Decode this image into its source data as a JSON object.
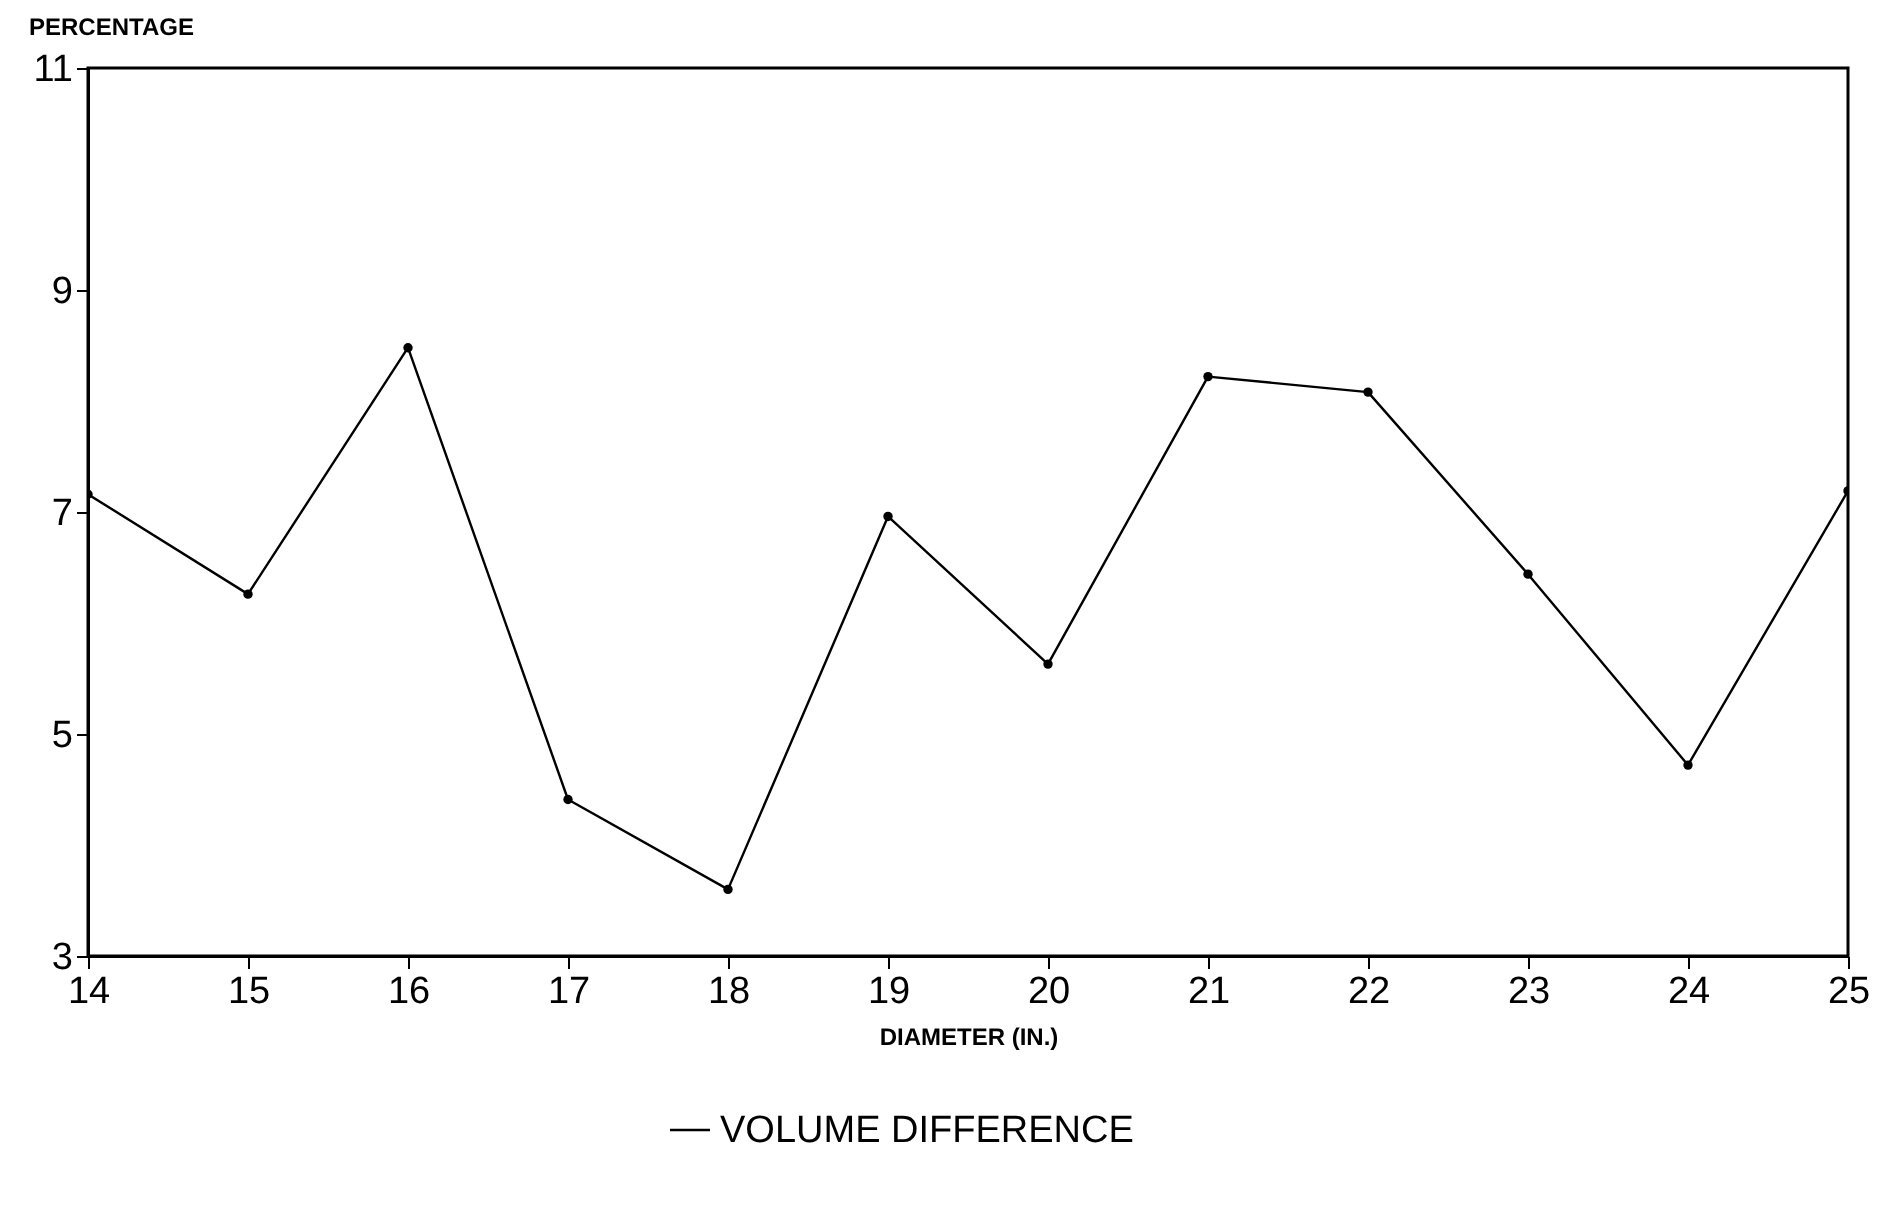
{
  "chart_data": {
    "type": "line",
    "xlabel": "DIAMETER (IN.)",
    "ylabel": "PERCENTAGE",
    "x": [
      14,
      15,
      16,
      17,
      18,
      19,
      20,
      21,
      22,
      23,
      24,
      25
    ],
    "series": [
      {
        "name": "VOLUME DIFFERENCE",
        "color": "#000000",
        "values": [
          7.16,
          6.26,
          8.48,
          4.41,
          3.6,
          6.96,
          5.63,
          8.22,
          8.08,
          6.44,
          4.72,
          7.19
        ]
      }
    ],
    "xlim": [
      14,
      25
    ],
    "xticks": [
      14,
      15,
      16,
      17,
      18,
      19,
      20,
      21,
      22,
      23,
      24,
      25
    ],
    "ylim": [
      3,
      11
    ],
    "yticks": [
      3,
      5,
      7,
      9,
      11
    ],
    "legend": "bottom",
    "marker": "circle",
    "line_style": "solid",
    "grid": false
  }
}
